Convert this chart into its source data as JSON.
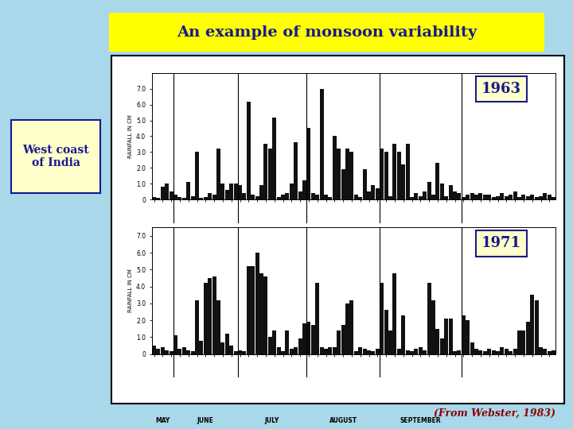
{
  "title": "An example of monsoon variability",
  "title_bg": "#FFFF00",
  "title_color": "#1a1a8c",
  "background": "#a8d8ea",
  "west_coast_label": "West coast\nof India",
  "west_coast_bg": "#ffffcc",
  "west_coast_color": "#1a1a8c",
  "west_coast_border": "#1a1a8c",
  "citation": "(From Webster, 1983)",
  "citation_color": "#8B0000",
  "year1": "1963",
  "year2": "1971",
  "year_color": "#1a1a8c",
  "year_bg": "#ffffcc",
  "year_border": "#1a1a8c",
  "ylabel": "RAINFALL IN CM",
  "months": [
    "MAY",
    "JUNE",
    "JULY",
    "AUGUST",
    "SEPTEMBER"
  ],
  "panel_bg": "#FFFFFF",
  "bar_color": "#111111",
  "yticks1963": [
    0,
    1.0,
    2.0,
    3.0,
    4.0,
    5.0,
    6.0,
    7.0
  ],
  "yticks1971": [
    0,
    1.0,
    2.0,
    3.0,
    4.0,
    5.0,
    6.0,
    7.0
  ],
  "ylim1963": [
    0,
    8.0
  ],
  "ylim1971": [
    0,
    7.5
  ],
  "data1963": [
    0.15,
    0.1,
    0.8,
    1.0,
    0.5,
    0.3,
    0.15,
    0.1,
    1.1,
    0.2,
    3.0,
    0.1,
    0.15,
    0.4,
    0.3,
    3.2,
    1.0,
    0.6,
    1.0,
    1.0,
    0.9,
    0.4,
    6.2,
    0.3,
    0.2,
    0.9,
    3.5,
    3.2,
    5.2,
    0.15,
    0.3,
    0.4,
    1.0,
    3.6,
    0.5,
    1.2,
    4.5,
    0.4,
    0.3,
    7.0,
    0.3,
    0.15,
    4.0,
    3.2,
    1.9,
    3.2,
    3.0,
    0.3,
    0.15,
    1.9,
    0.5,
    0.9,
    0.7,
    3.2,
    3.0,
    0.2,
    3.5,
    3.0,
    2.2,
    3.5,
    0.15,
    0.4,
    0.2,
    0.5,
    1.1,
    0.3,
    2.3,
    1.0,
    0.2,
    0.9,
    0.5,
    0.4,
    0.15,
    0.3,
    0.4,
    0.3,
    0.4,
    0.3,
    0.3,
    0.15,
    0.2,
    0.4,
    0.2,
    0.3,
    0.5,
    0.15,
    0.3,
    0.2,
    0.3,
    0.15,
    0.2,
    0.4,
    0.3,
    0.15
  ],
  "data1971": [
    0.5,
    0.3,
    0.4,
    0.2,
    0.15,
    1.1,
    0.3,
    0.4,
    0.2,
    0.15,
    3.2,
    0.8,
    4.2,
    4.5,
    4.6,
    3.2,
    0.7,
    1.2,
    0.5,
    0.15,
    0.2,
    0.15,
    5.2,
    5.2,
    6.0,
    4.8,
    4.6,
    1.0,
    1.4,
    0.4,
    0.15,
    1.4,
    0.3,
    0.4,
    0.9,
    1.8,
    1.9,
    1.7,
    4.2,
    0.4,
    0.3,
    0.4,
    0.4,
    1.4,
    1.7,
    3.0,
    3.2,
    0.15,
    0.4,
    0.3,
    0.2,
    0.15,
    0.3,
    4.2,
    2.6,
    1.4,
    4.8,
    0.3,
    2.3,
    0.2,
    0.15,
    0.3,
    0.4,
    0.2,
    4.2,
    3.2,
    1.5,
    0.9,
    2.1,
    2.1,
    0.15,
    0.2,
    2.3,
    2.0,
    0.7,
    0.3,
    0.2,
    0.15,
    0.3,
    0.2,
    0.15,
    0.4,
    0.3,
    0.15,
    0.3,
    1.4,
    1.4,
    1.9,
    3.5,
    3.2,
    0.4,
    0.3,
    0.15,
    0.2
  ]
}
